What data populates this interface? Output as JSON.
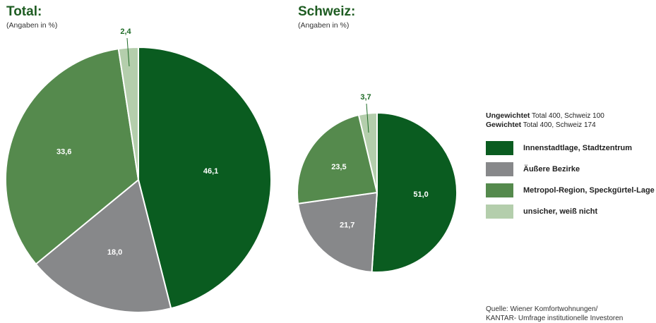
{
  "colors": {
    "title": "#1e5c22",
    "slices": [
      "#0a5c20",
      "#87888a",
      "#558a4d",
      "#b4ceac"
    ],
    "callout": "#1e6b26"
  },
  "info": {
    "line1_bold": "Ungewichtet",
    "line1_rest": " Total 400, Schweiz 100",
    "line2_bold": "Gewichtet",
    "line2_rest": " Total 400, Schweiz 174"
  },
  "legend": [
    "Innenstadtlage, Stadtzentrum",
    "Äußere Bezirke",
    "Metropol-Region, Speckgürtel-Lage",
    "unsicher, weiß nicht"
  ],
  "source": {
    "line1": "Quelle: Wiener Komfortwohnungen/",
    "line2": "KANTAR- Umfrage institutionelle Investoren"
  },
  "chart_data": [
    {
      "type": "pie",
      "title": "Total:",
      "subtitle": "(Angaben in %)",
      "categories": [
        "Innenstadtlage, Stadtzentrum",
        "Äußere Bezirke",
        "Metropol-Region, Speckgürtel-Lage",
        "unsicher, weiß nicht"
      ],
      "values": [
        46.1,
        18.0,
        33.6,
        2.4
      ],
      "labels": [
        "46,1",
        "18,0",
        "33,6",
        "2,4"
      ]
    },
    {
      "type": "pie",
      "title": "Schweiz:",
      "subtitle": "(Angaben in %)",
      "categories": [
        "Innenstadtlage, Stadtzentrum",
        "Äußere Bezirke",
        "Metropol-Region, Speckgürtel-Lage",
        "unsicher, weiß nicht"
      ],
      "values": [
        51.0,
        21.7,
        23.5,
        3.7
      ],
      "labels": [
        "51,0",
        "21,7",
        "23,5",
        "3,7"
      ]
    }
  ]
}
